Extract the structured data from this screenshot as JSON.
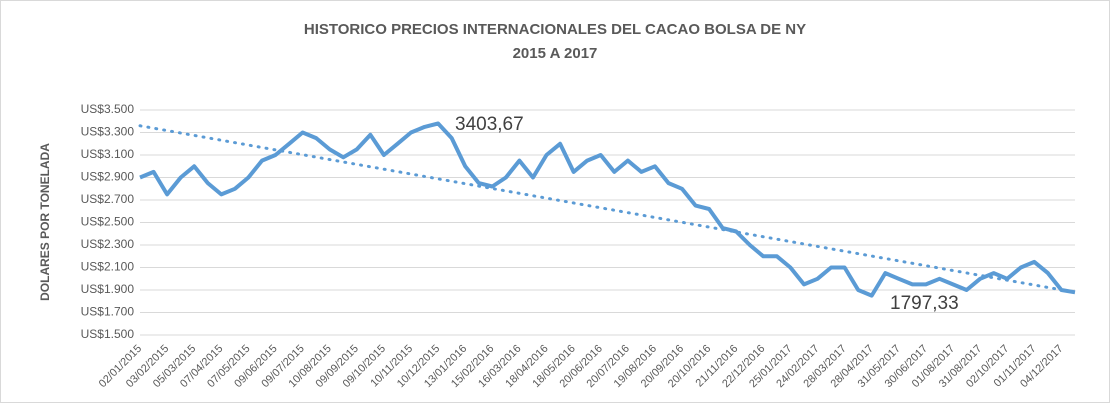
{
  "chart_data": {
    "type": "line",
    "title": "HISTORICO PRECIOS INTERNACIONALES DEL CACAO BOLSA DE NY",
    "subtitle": "2015 A 2017",
    "y_label": "DOLARES POR TONELADA",
    "categories": [
      "02/01/2015",
      null,
      "03/02/2015",
      null,
      "05/03/2015",
      null,
      "07/04/2015",
      null,
      "07/05/2015",
      null,
      "09/06/2015",
      null,
      "09/07/2015",
      null,
      "10/08/2015",
      null,
      "09/09/2015",
      null,
      "09/10/2015",
      null,
      "10/11/2015",
      null,
      "10/12/2015",
      null,
      "13/01/2016",
      null,
      "15/02/2016",
      null,
      "16/03/2016",
      null,
      "18/04/2016",
      null,
      "18/05/2016",
      null,
      "20/06/2016",
      null,
      "20/07/2016",
      null,
      "19/08/2016",
      null,
      "20/09/2016",
      null,
      "20/10/2016",
      null,
      "21/11/2016",
      null,
      "22/12/2016",
      null,
      "25/01/2017",
      null,
      "24/02/2017",
      null,
      "28/03/2017",
      null,
      "28/04/2017",
      null,
      "31/05/2017",
      null,
      "30/06/2017",
      null,
      "01/08/2017",
      null,
      "31/08/2017",
      null,
      "02/10/2017",
      null,
      "01/11/2017",
      null,
      "04/12/2017",
      null
    ],
    "series": [
      {
        "color": "#5b9bd5",
        "values": [
          2900,
          2950,
          2750,
          2900,
          3000,
          2850,
          2750,
          2800,
          2900,
          3050,
          3100,
          3200,
          3300,
          3250,
          3150,
          3080,
          3150,
          3280,
          3100,
          3200,
          3300,
          3350,
          3380,
          3250,
          3000,
          2850,
          2820,
          2900,
          3050,
          2900,
          3100,
          3200,
          2950,
          3050,
          3100,
          2950,
          3050,
          2950,
          3000,
          2850,
          2800,
          2650,
          2620,
          2450,
          2420,
          2300,
          2200,
          2200,
          2100,
          1950,
          2000,
          2100,
          2100,
          1900,
          1850,
          2050,
          2000,
          1950,
          1950,
          2000,
          1950,
          1900,
          2000,
          2050,
          2000,
          2100,
          2150,
          2050,
          1900,
          1880
        ]
      }
    ],
    "trend": [
      3360,
      1880
    ],
    "annotations": [
      {
        "text": "3403,67"
      },
      {
        "text": "1797,33"
      }
    ],
    "ylim": [
      1500,
      3500
    ],
    "yticks": [
      {
        "value": 1500,
        "label": "US$1.500"
      },
      {
        "value": 1700,
        "label": "US$1.700"
      },
      {
        "value": 1900,
        "label": "US$1.900"
      },
      {
        "value": 2100,
        "label": "US$2.100"
      },
      {
        "value": 2300,
        "label": "US$2.300"
      },
      {
        "value": 2500,
        "label": "US$2.500"
      },
      {
        "value": 2700,
        "label": "US$2.700"
      },
      {
        "value": 2900,
        "label": "US$2.900"
      },
      {
        "value": 3100,
        "label": "US$3.100"
      },
      {
        "value": 3300,
        "label": "US$3.300"
      },
      {
        "value": 3500,
        "label": "US$3.500"
      }
    ],
    "grid": true
  }
}
